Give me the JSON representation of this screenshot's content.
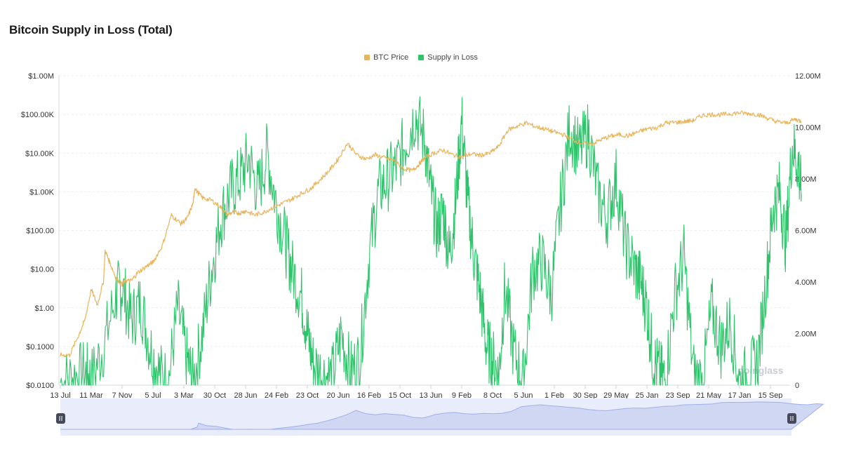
{
  "title": "Bitcoin Supply in Loss (Total)",
  "legend": [
    {
      "label": "BTC Price",
      "color": "#e8b45a"
    },
    {
      "label": "Supply in Loss",
      "color": "#2fc46b"
    }
  ],
  "watermark": "coinglass",
  "chart_data": {
    "type": "line",
    "title": "Bitcoin Supply in Loss (Total)",
    "categories": [
      "13 Jul",
      "11 Mar",
      "7 Nov",
      "5 Jul",
      "3 Mar",
      "30 Oct",
      "28 Jun",
      "24 Feb",
      "23 Oct",
      "20 Jun",
      "16 Feb",
      "15 Oct",
      "13 Jun",
      "9 Feb",
      "8 Oct",
      "5 Jun",
      "1 Feb",
      "30 Sep",
      "29 May",
      "25 Jan",
      "23 Sep",
      "21 May",
      "17 Jan",
      "15 Sep"
    ],
    "y_left": {
      "scale": "log",
      "range": [
        0.01,
        1000000
      ],
      "ticks": [
        0.01,
        0.1,
        1,
        10,
        100,
        1000,
        10000,
        100000,
        1000000
      ],
      "tick_labels": [
        "$0.0100",
        "$0.1000",
        "$1.00",
        "$10.00",
        "$100.00",
        "$1.00K",
        "$10.00K",
        "$100.00K",
        "$1.00M"
      ]
    },
    "y_right": {
      "scale": "linear",
      "range": [
        0,
        12000000
      ],
      "ticks": [
        0,
        2000000,
        4000000,
        6000000,
        8000000,
        10000000,
        12000000
      ],
      "tick_labels": [
        "0",
        "2.00M",
        "4.00M",
        "6.00M",
        "8.00M",
        "10.00M",
        "12.00M"
      ]
    },
    "grid": true,
    "legend_position": "top-center",
    "series": [
      {
        "name": "BTC Price",
        "axis": "left",
        "color": "#e8b45a",
        "x": [
          0,
          0.3,
          0.6,
          0.8,
          1.0,
          1.2,
          1.4,
          1.45,
          1.6,
          1.8,
          2.0,
          2.1,
          2.3,
          2.5,
          2.8,
          3.0,
          3.3,
          3.6,
          3.9,
          4.1,
          4.3,
          4.35,
          4.6,
          4.9,
          5.2,
          5.4,
          5.6,
          5.8,
          6.0,
          6.3,
          6.6,
          6.9,
          7.2,
          7.5,
          7.8,
          8.1,
          8.4,
          8.7,
          9.0,
          9.3,
          9.6,
          9.9,
          10.2,
          10.5,
          10.8,
          11.1,
          11.4,
          11.6,
          11.8,
          12.1,
          12.4,
          12.7,
          13.0,
          13.3,
          13.6,
          13.9,
          14.2,
          14.5,
          14.8,
          15.1,
          15.4,
          15.7,
          16.0,
          16.3,
          16.6,
          16.9,
          17.2,
          17.5,
          17.8,
          18.1,
          18.4,
          18.7,
          19.0,
          19.3,
          19.6,
          19.9,
          20.2,
          20.5,
          20.8,
          21.1,
          21.4,
          21.7,
          22.0,
          22.3,
          22.6,
          22.9,
          23.2,
          23.5,
          23.8,
          24.0
        ],
        "values": [
          0.06,
          0.06,
          0.2,
          0.5,
          3,
          1.2,
          5,
          30,
          15,
          6,
          4,
          5,
          5,
          8,
          12,
          15,
          40,
          250,
          150,
          200,
          500,
          1200,
          700,
          600,
          400,
          250,
          300,
          280,
          320,
          250,
          300,
          400,
          500,
          650,
          900,
          1200,
          2000,
          3500,
          7000,
          18000,
          9000,
          7000,
          9000,
          7500,
          6500,
          4000,
          3500,
          5000,
          7500,
          10000,
          12000,
          9000,
          8000,
          9500,
          8800,
          9800,
          15000,
          40000,
          50000,
          60000,
          48000,
          42000,
          35000,
          30000,
          22000,
          18000,
          17000,
          22000,
          27000,
          30000,
          28000,
          35000,
          42000,
          45000,
          60000,
          62000,
          65000,
          70000,
          95000,
          100000,
          98000,
          105000,
          110000,
          105000,
          100000,
          80000,
          65000,
          60000,
          75000,
          67000
        ]
      },
      {
        "name": "Supply in Loss",
        "axis": "right",
        "color": "#2fc46b",
        "x": [
          0,
          0.4,
          0.8,
          1.0,
          1.4,
          1.8,
          2.0,
          2.3,
          2.6,
          2.9,
          3.2,
          3.5,
          3.8,
          4.1,
          4.3,
          4.6,
          4.9,
          5.2,
          5.5,
          5.8,
          6.1,
          6.4,
          6.7,
          7.0,
          7.3,
          7.5,
          7.8,
          8.0,
          8.2,
          8.5,
          8.8,
          9.1,
          9.4,
          9.7,
          10.0,
          10.3,
          10.6,
          10.9,
          11.2,
          11.5,
          11.8,
          12.0,
          12.2,
          12.4,
          12.6,
          12.8,
          13.0,
          13.2,
          13.4,
          13.6,
          13.8,
          14.0,
          14.2,
          14.4,
          14.7,
          15.0,
          15.3,
          15.6,
          15.9,
          16.2,
          16.5,
          16.8,
          17.1,
          17.4,
          17.7,
          18.0,
          18.3,
          18.6,
          18.8,
          19.0,
          19.2,
          19.4,
          19.6,
          19.9,
          20.2,
          20.5,
          20.8,
          21.1,
          21.4,
          21.7,
          22.0,
          22.3,
          22.6,
          22.9,
          23.1,
          23.3,
          23.5,
          23.7,
          23.9,
          24.0
        ],
        "values": [
          100000,
          300000,
          500000,
          200000,
          1500000,
          3500000,
          3800000,
          2500000,
          3200000,
          1500000,
          500000,
          100000,
          3000000,
          1000000,
          100000,
          2000000,
          4500000,
          6500000,
          7500000,
          8000000,
          8800000,
          7500000,
          9000000,
          7000000,
          5500000,
          4500000,
          3500000,
          2000000,
          800000,
          400000,
          300000,
          2000000,
          500000,
          1000000,
          5000000,
          7500000,
          8000000,
          8500000,
          9500000,
          10500000,
          9500000,
          7500000,
          6000000,
          6800000,
          5000000,
          7000000,
          10300000,
          7000000,
          5000000,
          3500000,
          1500000,
          1000000,
          300000,
          3800000,
          1200000,
          200000,
          4500000,
          4800000,
          3500000,
          7000000,
          10000000,
          9000000,
          9800000,
          7500000,
          6500000,
          8000000,
          5500000,
          4500000,
          4000000,
          3000000,
          1000000,
          500000,
          200000,
          3500000,
          5000000,
          500000,
          100000,
          3000000,
          1500000,
          2500000,
          100000,
          400000,
          1000000,
          4500000,
          7000000,
          7500000,
          5500000,
          9300000,
          8600000,
          7400000
        ]
      }
    ]
  }
}
